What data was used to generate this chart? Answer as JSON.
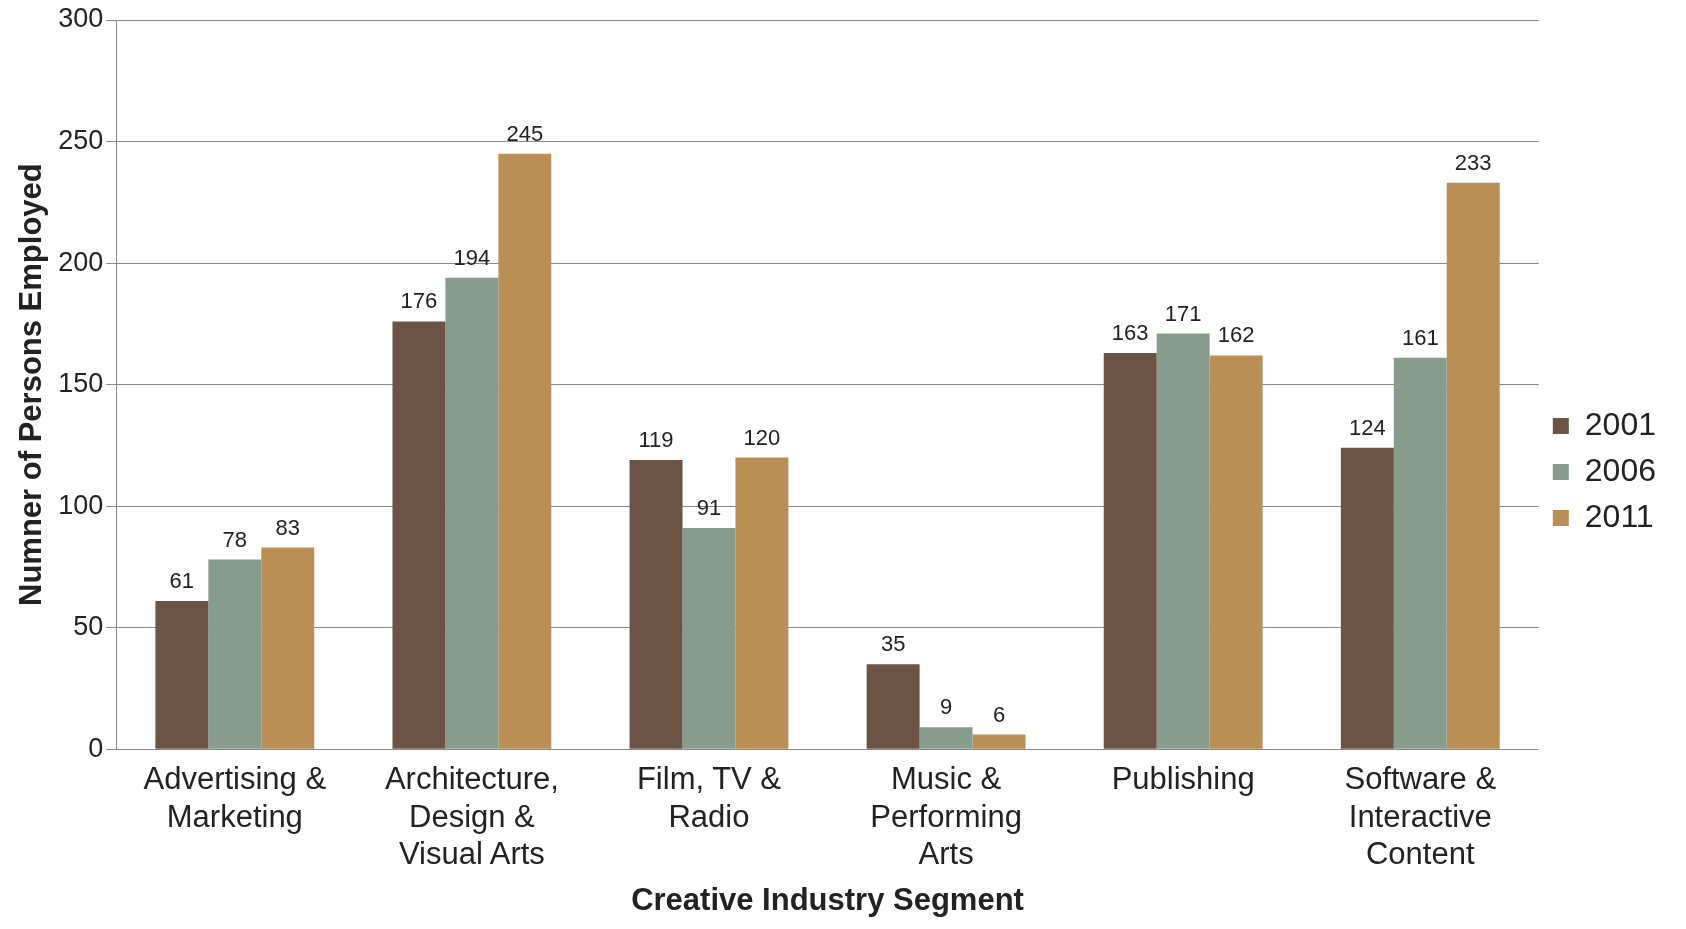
{
  "chart_data": {
    "type": "bar",
    "xlabel": "Creative Industry Segment",
    "ylabel": "Numner of Persons Employed",
    "categories": [
      "Advertising & Marketing",
      "Architecture, Design & Visual Arts",
      "Film, TV & Radio",
      "Music & Performing Arts",
      "Publishing",
      "Software & Interactive Content"
    ],
    "series": [
      {
        "name": "2001",
        "color": "#6b5446",
        "values": [
          61,
          176,
          119,
          35,
          163,
          124
        ]
      },
      {
        "name": "2006",
        "color": "#889c8e",
        "values": [
          78,
          194,
          91,
          9,
          171,
          161
        ]
      },
      {
        "name": "2011",
        "color": "#b98f55",
        "values": [
          83,
          245,
          120,
          6,
          162,
          233
        ]
      }
    ],
    "ylim": [
      0,
      300
    ],
    "yticks": [
      0,
      50,
      100,
      150,
      200,
      250,
      300
    ],
    "grid": "y",
    "legend": "right",
    "data_labels": true
  }
}
